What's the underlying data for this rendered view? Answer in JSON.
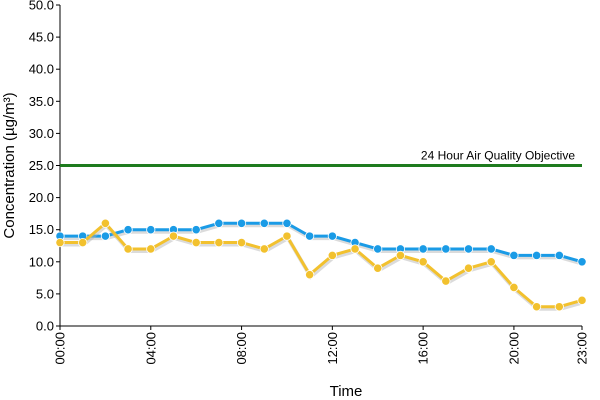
{
  "chart_data": {
    "type": "line",
    "xlabel": "Time",
    "ylabel": "Concentration (µg/m³)",
    "ylim": [
      0,
      50
    ],
    "yticks": [
      "0.0",
      "5.0",
      "10.0",
      "15.0",
      "20.0",
      "25.0",
      "30.0",
      "35.0",
      "40.0",
      "45.0",
      "50.0"
    ],
    "xticks": [
      "00:00",
      "04:00",
      "08:00",
      "12:00",
      "16:00",
      "20:00",
      "23:00"
    ],
    "xtick_hours": [
      0,
      4,
      8,
      12,
      16,
      20,
      23
    ],
    "x_hours": [
      0,
      1,
      2,
      3,
      4,
      5,
      6,
      7,
      8,
      9,
      10,
      11,
      12,
      13,
      14,
      15,
      16,
      17,
      18,
      19,
      20,
      21,
      22,
      23
    ],
    "grid": false,
    "legend": "none",
    "series": [
      {
        "color": "#1a9be6",
        "values": [
          14,
          14,
          14,
          15,
          15,
          15,
          15,
          16,
          16,
          16,
          16,
          14,
          14,
          13,
          12,
          12,
          12,
          12,
          12,
          12,
          11,
          11,
          11,
          10
        ]
      },
      {
        "color": "#f2c12e",
        "values": [
          13,
          13,
          16,
          12,
          12,
          14,
          13,
          13,
          13,
          12,
          14,
          8,
          11,
          12,
          9,
          11,
          10,
          7,
          9,
          10,
          6,
          3,
          3,
          4
        ]
      }
    ],
    "reference_line": {
      "value": 25,
      "label": "24 Hour Air Quality Objective",
      "color": "#1e7b1e"
    }
  }
}
